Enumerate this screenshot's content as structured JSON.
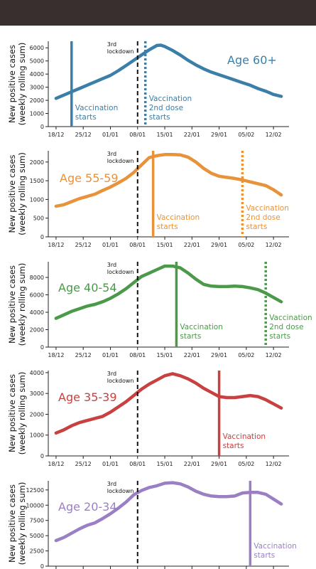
{
  "colors": {
    "topbar": "#3a2f2f",
    "lockdown_line": "#111111",
    "axis": "#222222"
  },
  "common": {
    "ylabel_line1": "New positive cases",
    "ylabel_line2": "(weekly rolling sum)",
    "x_ticks": [
      "18/12",
      "25/12",
      "01/01",
      "08/01",
      "15/01",
      "22/01",
      "29/01",
      "05/02",
      "12/02"
    ],
    "x_tick_days": [
      0,
      7,
      14,
      21,
      28,
      35,
      42,
      49,
      56
    ],
    "x_start_date": "18/12",
    "lockdown_label_line1": "3rd",
    "lockdown_label_line2": "lockdown",
    "lockdown_x": 21
  },
  "chart_data": [
    {
      "type": "line",
      "title": "Age 60+",
      "color": "#3b7fa8",
      "ylim": [
        0,
        6500
      ],
      "y_ticks": [
        0,
        1000,
        2000,
        3000,
        4000,
        5000,
        6000
      ],
      "x": [
        0,
        2,
        4,
        6,
        8,
        10,
        12,
        14,
        16,
        18,
        20,
        22,
        24,
        26,
        27,
        28,
        30,
        32,
        34,
        36,
        38,
        40,
        42,
        44,
        46,
        48,
        50,
        52,
        54,
        56,
        58
      ],
      "y": [
        2150,
        2400,
        2650,
        2900,
        3150,
        3400,
        3650,
        3900,
        4250,
        4650,
        5050,
        5450,
        5850,
        6180,
        6200,
        6100,
        5800,
        5450,
        5050,
        4700,
        4400,
        4150,
        3950,
        3750,
        3550,
        3350,
        3150,
        2900,
        2700,
        2450,
        2300
      ],
      "events": [
        {
          "x": 4,
          "style": "solid",
          "label_line1": "Vaccination",
          "label_line2": "starts",
          "label_line3": ""
        },
        {
          "x": 23,
          "style": "dotted",
          "label_line1": "Vaccination",
          "label_line2": "2nd dose",
          "label_line3": "starts"
        }
      ]
    },
    {
      "type": "line",
      "title": "Age 55-59",
      "color": "#e8923a",
      "ylim": [
        0,
        2300
      ],
      "y_ticks": [
        0,
        500,
        1000,
        1500,
        2000
      ],
      "x": [
        0,
        2,
        4,
        6,
        8,
        10,
        12,
        14,
        16,
        18,
        20,
        22,
        24,
        26,
        28,
        30,
        32,
        34,
        36,
        38,
        40,
        42,
        44,
        46,
        48,
        50,
        52,
        54,
        56,
        58
      ],
      "y": [
        820,
        860,
        940,
        1020,
        1080,
        1140,
        1240,
        1330,
        1440,
        1560,
        1720,
        1920,
        2120,
        2170,
        2200,
        2200,
        2190,
        2130,
        2000,
        1830,
        1700,
        1620,
        1590,
        1560,
        1520,
        1470,
        1420,
        1370,
        1260,
        1120
      ],
      "events": [
        {
          "x": 25,
          "style": "solid",
          "label_line1": "Vaccination",
          "label_line2": "starts",
          "label_line3": ""
        },
        {
          "x": 48,
          "style": "dotted",
          "label_line1": "Vaccination",
          "label_line2": "2nd dose",
          "label_line3": "starts"
        }
      ]
    },
    {
      "type": "line",
      "title": "Age 40-54",
      "color": "#4a9a4a",
      "ylim": [
        0,
        9800
      ],
      "y_ticks": [
        0,
        2000,
        4000,
        6000,
        8000
      ],
      "x": [
        0,
        2,
        4,
        6,
        8,
        10,
        12,
        14,
        16,
        18,
        20,
        22,
        24,
        26,
        28,
        30,
        32,
        34,
        36,
        38,
        40,
        42,
        44,
        46,
        48,
        50,
        52,
        54,
        56,
        58
      ],
      "y": [
        3300,
        3700,
        4100,
        4400,
        4700,
        4900,
        5200,
        5600,
        6100,
        6700,
        7400,
        8100,
        8500,
        8900,
        9300,
        9300,
        9100,
        8500,
        7800,
        7200,
        7000,
        6950,
        6950,
        7000,
        6950,
        6800,
        6600,
        6200,
        5700,
        5200
      ],
      "events": [
        {
          "x": 31,
          "style": "solid",
          "label_line1": "Vaccination",
          "label_line2": "starts",
          "label_line3": ""
        },
        {
          "x": 54,
          "style": "dotted",
          "label_line1": "Vaccination",
          "label_line2": "2nd dose",
          "label_line3": "starts"
        }
      ]
    },
    {
      "type": "line",
      "title": "Age 35-39",
      "color": "#c94040",
      "ylim": [
        0,
        4100
      ],
      "y_ticks": [
        0,
        1000,
        2000,
        3000,
        4000
      ],
      "x": [
        0,
        2,
        4,
        6,
        8,
        10,
        12,
        14,
        16,
        18,
        20,
        22,
        24,
        26,
        28,
        30,
        32,
        34,
        36,
        38,
        40,
        42,
        44,
        46,
        48,
        50,
        52,
        54,
        56,
        58
      ],
      "y": [
        1100,
        1250,
        1450,
        1600,
        1700,
        1800,
        1900,
        2100,
        2350,
        2600,
        2900,
        3200,
        3450,
        3650,
        3850,
        3950,
        3850,
        3700,
        3500,
        3250,
        3050,
        2850,
        2800,
        2800,
        2850,
        2900,
        2850,
        2700,
        2500,
        2300
      ],
      "events": [
        {
          "x": 42,
          "style": "solid",
          "label_line1": "Vaccination",
          "label_line2": "starts",
          "label_line3": ""
        }
      ]
    },
    {
      "type": "line",
      "title": "Age 20-34",
      "color": "#9b7fc4",
      "ylim": [
        0,
        14000
      ],
      "y_ticks": [
        0,
        2500,
        5000,
        7500,
        10000,
        12500
      ],
      "x": [
        0,
        2,
        4,
        6,
        8,
        10,
        12,
        14,
        16,
        18,
        20,
        22,
        24,
        26,
        28,
        30,
        32,
        34,
        36,
        38,
        40,
        42,
        44,
        46,
        48,
        50,
        52,
        54,
        56,
        58
      ],
      "y": [
        4200,
        4700,
        5400,
        6100,
        6700,
        7100,
        7800,
        8600,
        9500,
        10500,
        11700,
        12400,
        12900,
        13200,
        13600,
        13700,
        13500,
        13000,
        12300,
        11800,
        11500,
        11400,
        11400,
        11500,
        12000,
        12100,
        12100,
        11800,
        11000,
        10200
      ],
      "events": [
        {
          "x": 50,
          "style": "solid",
          "label_line1": "Vaccination",
          "label_line2": "starts",
          "label_line3": ""
        }
      ]
    }
  ]
}
